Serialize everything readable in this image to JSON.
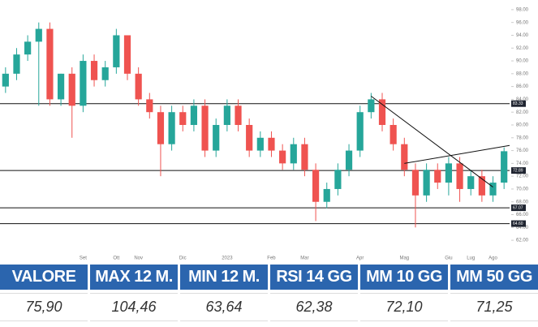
{
  "chart_data": {
    "type": "candlestick",
    "categories": [
      null,
      null,
      null,
      null,
      null,
      null,
      null,
      "Set",
      null,
      null,
      "Ott",
      null,
      "Nov",
      null,
      null,
      null,
      "Dic",
      null,
      null,
      null,
      "2023",
      null,
      null,
      null,
      "Feb",
      null,
      null,
      "Mar",
      null,
      null,
      null,
      null,
      "Apr",
      null,
      null,
      null,
      "Mag",
      null,
      null,
      null,
      "Giu",
      null,
      "Lug",
      null,
      "Ago",
      null
    ],
    "open": [
      86,
      88,
      91,
      93,
      95,
      84,
      88,
      83,
      90,
      87,
      89,
      94,
      88,
      84,
      82,
      77,
      82,
      80,
      83,
      76,
      80,
      83,
      80,
      76,
      78,
      76,
      74,
      77,
      73,
      68,
      70,
      73,
      76,
      82,
      84,
      80,
      77,
      73,
      69,
      73,
      71,
      74,
      70,
      72,
      69,
      71
    ],
    "high": [
      89,
      92,
      94,
      96,
      96,
      88,
      89,
      91,
      91,
      90,
      95,
      94,
      89,
      85,
      83,
      83,
      83,
      84,
      84,
      81,
      84,
      84,
      81,
      79,
      79,
      77,
      78,
      78,
      74,
      71,
      74,
      77,
      83,
      85,
      85,
      81,
      78,
      74,
      74,
      74,
      75,
      75,
      73,
      73,
      72,
      76.5
    ],
    "low": [
      85,
      87,
      90,
      83,
      83,
      83,
      78,
      82,
      86,
      86,
      88,
      87,
      83,
      81,
      72,
      76,
      79,
      79,
      75,
      75,
      79,
      79,
      75,
      75,
      75,
      73,
      73,
      72,
      65,
      67,
      69,
      72,
      75,
      81,
      79,
      76,
      72,
      64,
      68,
      70,
      69,
      68,
      69,
      68,
      68,
      70
    ],
    "close": [
      88,
      91,
      93,
      95,
      84,
      88,
      83,
      90,
      87,
      89,
      94,
      88,
      84,
      82,
      77,
      82,
      80,
      83,
      76,
      80,
      83,
      80,
      76,
      78,
      76,
      74,
      77,
      73,
      68,
      70,
      73,
      76,
      82,
      84,
      80,
      77,
      73,
      69,
      73,
      71,
      74,
      70,
      72,
      69,
      71,
      75.9
    ],
    "up_color": "#26a69a",
    "down_color": "#ef5350",
    "ylim": [
      61,
      99
    ],
    "yticks": [
      {
        "value": 62,
        "label": "62.00"
      },
      {
        "value": 64,
        "label": "64.00"
      },
      {
        "value": 66,
        "label": "66.00"
      },
      {
        "value": 68,
        "label": "68.00"
      },
      {
        "value": 70,
        "label": "70.00"
      },
      {
        "value": 72,
        "label": "72.00"
      },
      {
        "value": 74,
        "label": "74.00"
      },
      {
        "value": 76,
        "label": "76.00"
      },
      {
        "value": 78,
        "label": "78.00"
      },
      {
        "value": 80,
        "label": "80.00"
      },
      {
        "value": 82,
        "label": "82.00"
      },
      {
        "value": 84,
        "label": "84.00"
      },
      {
        "value": 86,
        "label": "86.00"
      },
      {
        "value": 88,
        "label": "88.00"
      },
      {
        "value": 90,
        "label": "90.00"
      },
      {
        "value": 92,
        "label": "92.00"
      },
      {
        "value": 94,
        "label": "94.00"
      },
      {
        "value": 96,
        "label": "96.00"
      },
      {
        "value": 98,
        "label": "98.00"
      }
    ],
    "levels": [
      83.33,
      72.89,
      67.07,
      {
        "value": 64.6,
        "label": "64.60"
      }
    ],
    "trendlines": [
      {
        "start": [
          33,
          84.5
        ],
        "end": [
          44,
          70.3
        ]
      },
      {
        "start": [
          36,
          74
        ],
        "end": [
          45.5,
          76.8
        ]
      }
    ]
  },
  "table": {
    "headers": [
      "VALORE",
      "MAX 12 M.",
      "MIN 12 M.",
      "RSI 14 GG",
      "MM 10 GG",
      "MM 50 GG"
    ],
    "values": [
      "75,90",
      "104,46",
      "63,64",
      "62,38",
      "72,10",
      "71,25"
    ]
  }
}
